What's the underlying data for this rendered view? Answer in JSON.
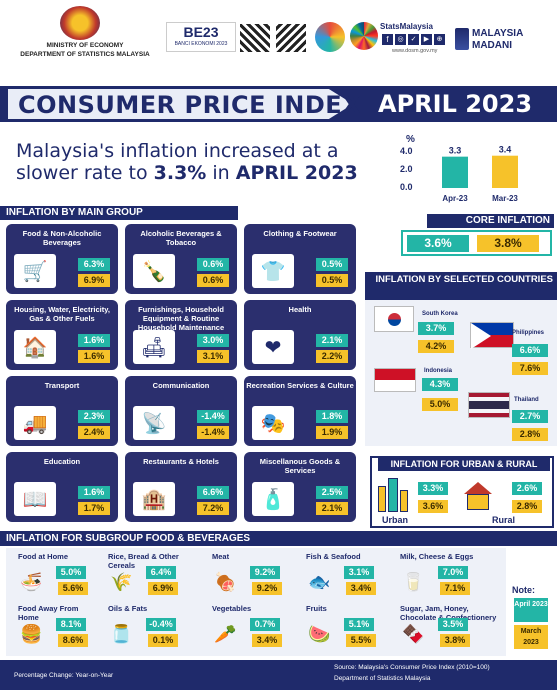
{
  "header": {
    "ministry_line1": "MINISTRY OF ECONOMY",
    "ministry_line2": "DEPARTMENT OF STATISTICS MALAYSIA",
    "banci_logo": "BANCI EKONOMI 2023",
    "stats_brand": "StatsMalaysia",
    "website": "www.dosm.gov.my",
    "madani_line1": "MALAYSIA",
    "madani_line2": "MADANI"
  },
  "title": {
    "main": "CONSUMER PRICE INDEX",
    "month": "APRIL 2023"
  },
  "headline": {
    "part1": "Malaysia's inflation increased at a",
    "part2": "slower rate to ",
    "rate": "3.3%",
    "part3": " in ",
    "month": "APRIL 2023"
  },
  "headline_chart": {
    "unit": "%",
    "ticks": [
      "4.0",
      "2.0",
      "0.0"
    ],
    "bars": [
      {
        "label": "Apr-23",
        "value": 3.3,
        "text": "3.3",
        "color": "#23b5a6"
      },
      {
        "label": "Mar-23",
        "value": 3.4,
        "text": "3.4",
        "color": "#f6c22a"
      }
    ],
    "max": 4.0
  },
  "main_group": {
    "heading": "INFLATION BY MAIN GROUP",
    "cards": [
      {
        "title": "Food & Non-Alcoholic Beverages",
        "apr": "6.3%",
        "mar": "6.9%",
        "icon": "🛒"
      },
      {
        "title": "Alcoholic Beverages & Tobacco",
        "apr": "0.6%",
        "mar": "0.6%",
        "icon": "🍾"
      },
      {
        "title": "Clothing & Footwear",
        "apr": "0.5%",
        "mar": "0.5%",
        "icon": "👕"
      },
      {
        "title": "Housing, Water, Electricity, Gas & Other Fuels",
        "apr": "1.6%",
        "mar": "1.6%",
        "icon": "🏠"
      },
      {
        "title": "Furnishings, Household Equipment & Routine Household Maintenance",
        "apr": "3.0%",
        "mar": "3.1%",
        "icon": "🛋"
      },
      {
        "title": "Health",
        "apr": "2.1%",
        "mar": "2.2%",
        "icon": "❤"
      },
      {
        "title": "Transport",
        "apr": "2.3%",
        "mar": "2.4%",
        "icon": "🚚"
      },
      {
        "title": "Communication",
        "apr": "-1.4%",
        "mar": "-1.4%",
        "icon": "📡"
      },
      {
        "title": "Recreation Services & Culture",
        "apr": "1.8%",
        "mar": "1.9%",
        "icon": "🎭"
      },
      {
        "title": "Education",
        "apr": "1.6%",
        "mar": "1.7%",
        "icon": "📖"
      },
      {
        "title": "Restaurants & Hotels",
        "apr": "6.6%",
        "mar": "7.2%",
        "icon": "🏨"
      },
      {
        "title": "Miscellanous Goods & Services",
        "apr": "2.5%",
        "mar": "2.1%",
        "icon": "🧴"
      }
    ]
  },
  "core": {
    "heading": "CORE INFLATION",
    "apr": "3.6%",
    "mar": "3.8%"
  },
  "countries": {
    "heading": "INFLATION BY SELECTED COUNTRIES",
    "items": [
      {
        "name": "South Korea",
        "apr": "3.7%",
        "mar": "4.2%"
      },
      {
        "name": "Philippines",
        "apr": "6.6%",
        "mar": "7.6%"
      },
      {
        "name": "Indonesia",
        "apr": "4.3%",
        "mar": "5.0%"
      },
      {
        "name": "Thailand",
        "apr": "2.7%",
        "mar": "2.8%"
      }
    ]
  },
  "urban_rural": {
    "heading": "INFLATION FOR URBAN & RURAL",
    "urban": {
      "label": "Urban",
      "apr": "3.3%",
      "mar": "3.6%"
    },
    "rural": {
      "label": "Rural",
      "apr": "2.6%",
      "mar": "2.8%"
    }
  },
  "subgroup": {
    "heading": "INFLATION FOR SUBGROUP FOOD & BEVERAGES",
    "items": [
      {
        "name": "Food at Home",
        "apr": "5.0%",
        "mar": "5.6%",
        "icon": "🍜"
      },
      {
        "name": "Rice, Bread & Other Cereals",
        "apr": "6.4%",
        "mar": "6.9%",
        "icon": "🌾"
      },
      {
        "name": "Meat",
        "apr": "9.2%",
        "mar": "9.2%",
        "icon": "🍖"
      },
      {
        "name": "Fish & Seafood",
        "apr": "3.1%",
        "mar": "3.4%",
        "icon": "🐟"
      },
      {
        "name": "Milk, Cheese & Eggs",
        "apr": "7.0%",
        "mar": "7.1%",
        "icon": "🥛"
      },
      {
        "name": "Food Away From Home",
        "apr": "8.1%",
        "mar": "8.6%",
        "icon": "🍔"
      },
      {
        "name": "Oils & Fats",
        "apr": "-0.4%",
        "mar": "0.1%",
        "icon": "🫙"
      },
      {
        "name": "Vegetables",
        "apr": "0.7%",
        "mar": "3.4%",
        "icon": "🥕"
      },
      {
        "name": "Fruits",
        "apr": "5.1%",
        "mar": "5.5%",
        "icon": "🍉"
      },
      {
        "name": "Sugar, Jam, Honey, Chocolate & Confectionery",
        "apr": "3.5%",
        "mar": "3.8%",
        "icon": "🍫"
      }
    ]
  },
  "note": {
    "heading": "Note:",
    "apr": "April 2023",
    "mar": "March 2023"
  },
  "footer": {
    "left": "Percentage Change: Year-on-Year",
    "right1": "Source: Malaysia's Consumer Price Index (2010=100)",
    "right2": "Department of Statistics Malaysia"
  },
  "colors": {
    "navy": "#1f2a6b",
    "teal": "#23b5a6",
    "gold": "#f6c22a"
  }
}
